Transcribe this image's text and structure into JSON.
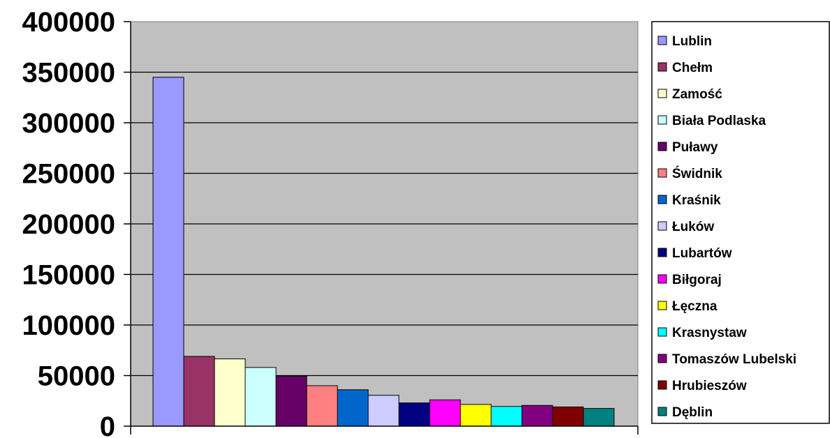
{
  "chart_data": {
    "type": "bar",
    "title": "",
    "xlabel": "",
    "ylabel": "",
    "ylim": [
      0,
      400000
    ],
    "yticks": [
      "0",
      "50000",
      "100000",
      "150000",
      "200000",
      "250000",
      "300000",
      "350000",
      "400000"
    ],
    "grid": true,
    "legend_position": "right",
    "plot_background": "#c0c0c0",
    "series": [
      {
        "name": "Lublin",
        "value": 345000,
        "color": "#9999ff"
      },
      {
        "name": "Chełm",
        "value": 69000,
        "color": "#993366"
      },
      {
        "name": "Zamość",
        "value": 66500,
        "color": "#ffffcc"
      },
      {
        "name": "Biała Podlaska",
        "value": 58000,
        "color": "#ccffff"
      },
      {
        "name": "Puławy",
        "value": 49500,
        "color": "#660066"
      },
      {
        "name": "Świdnik",
        "value": 40000,
        "color": "#ff8080"
      },
      {
        "name": "Kraśnik",
        "value": 36000,
        "color": "#0066cc"
      },
      {
        "name": "Łuków",
        "value": 30500,
        "color": "#ccccff"
      },
      {
        "name": "Lubartów",
        "value": 23000,
        "color": "#000080"
      },
      {
        "name": "Biłgoraj",
        "value": 26000,
        "color": "#ff00ff"
      },
      {
        "name": "Łęczna",
        "value": 21500,
        "color": "#ffff00"
      },
      {
        "name": "Krasnystaw",
        "value": 19500,
        "color": "#00ffff"
      },
      {
        "name": "Tomaszów Lubelski",
        "value": 20500,
        "color": "#800080"
      },
      {
        "name": "Hrubieszów",
        "value": 19000,
        "color": "#800000"
      },
      {
        "name": "Dęblin",
        "value": 17500,
        "color": "#008080"
      }
    ]
  }
}
